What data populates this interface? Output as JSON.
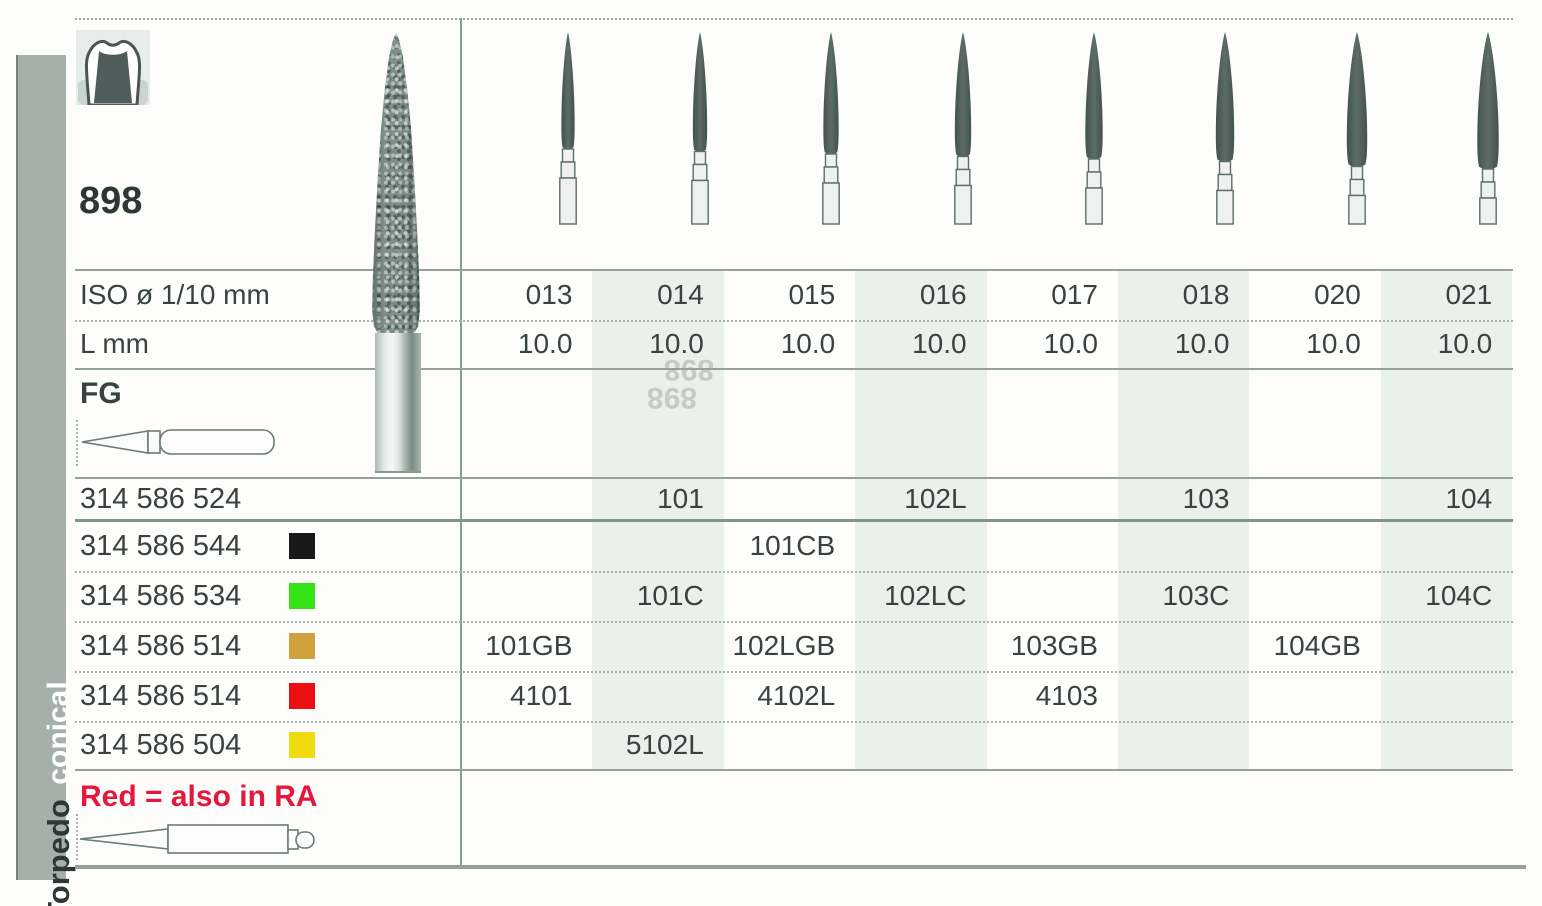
{
  "page": {
    "series_label": "898",
    "watermark_text": "898",
    "note_text": "Red = also in RA"
  },
  "sidebar": {
    "shape_label": "Torpedo",
    "type_label": "conical"
  },
  "table": {
    "row_labels": {
      "iso": "ISO ø 1/10 mm",
      "length": "L mm",
      "shank_type": "FG"
    },
    "iso_values": [
      "013",
      "014",
      "015",
      "016",
      "017",
      "018",
      "020",
      "021"
    ],
    "length_values": [
      "10.0",
      "10.0",
      "10.0",
      "10.0",
      "10.0",
      "10.0",
      "10.0",
      "10.0"
    ],
    "order_rows": [
      {
        "code": "314 586 524",
        "chip_name": null,
        "chip_color": null,
        "values": [
          "",
          "101",
          "",
          "102L",
          "",
          "103",
          "",
          "104"
        ]
      },
      {
        "code": "314 586 544",
        "chip_name": "black",
        "chip_color": "#191919",
        "values": [
          "",
          "",
          "101CB",
          "",
          "",
          "",
          "",
          ""
        ]
      },
      {
        "code": "314 586 534",
        "chip_name": "green",
        "chip_color": "#36e315",
        "values": [
          "",
          "101C",
          "",
          "102LC",
          "",
          "103C",
          "",
          "104C"
        ]
      },
      {
        "code": "314 586 514",
        "chip_name": "gold",
        "chip_color": "#d0a13c",
        "values": [
          "101GB",
          "",
          "102LGB",
          "",
          "103GB",
          "",
          "104GB",
          ""
        ]
      },
      {
        "code": "314 586 514",
        "chip_name": "red",
        "chip_color": "#ec0f11",
        "values": [
          "4101",
          "",
          "4102L",
          "",
          "4103",
          "",
          "",
          ""
        ]
      },
      {
        "code": "314 586 504",
        "chip_name": "yellow",
        "chip_color": "#f0da10",
        "values": [
          "",
          "5102L",
          "",
          "",
          "",
          "",
          "",
          ""
        ]
      }
    ]
  },
  "colors": {
    "sidebar_bg": "#a6b0ab",
    "column_tint": "#eaf0ec",
    "grid_line": "#8c9a94",
    "text": "#39423e",
    "note_red": "#e5173c",
    "bur_dark": "#4d5c57"
  }
}
